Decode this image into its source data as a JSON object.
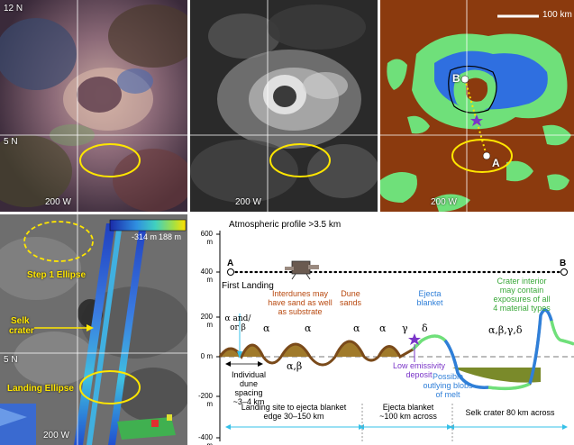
{
  "panels": {
    "top_left": {
      "lat_top": "12 N",
      "lat_mid": "5 N",
      "lon": "200 W"
    },
    "top_mid": {
      "lon": "200 W"
    },
    "top_right": {
      "scale": "100 km",
      "lon": "200 W",
      "point_b": "B",
      "point_a": "A"
    },
    "bottom_left": {
      "colorbar_low": "-314 m",
      "colorbar_high": "188 m",
      "step1": "Step 1 Ellipse",
      "selk": "Selk",
      "crater": "crater",
      "landing": "Landing Ellipse",
      "lat": "5 N",
      "lon": "200 W"
    }
  },
  "profile": {
    "title": "Atmospheric profile >3.5 km",
    "y_ticks": [
      "600 m",
      "400 m",
      "200 m",
      "0 m",
      "-200 m",
      "-400 m"
    ],
    "point_a": "A",
    "point_b": "B",
    "first_landing": "First Landing",
    "interdunes": [
      "Interdunes may",
      "have sand as well",
      "as substrate"
    ],
    "dune_sands": [
      "Dune",
      "sands"
    ],
    "ejecta": [
      "Ejecta",
      "blanket"
    ],
    "crater_interior": [
      "Crater interior",
      "may contain",
      "exposures of all",
      "4 material types"
    ],
    "alpha_beta_top": [
      "α and/",
      "or β"
    ],
    "alpha1": "α",
    "alpha2": "α",
    "alpha3": "α",
    "gamma": "γ",
    "delta": "δ",
    "all_greek": "α,β,γ,δ",
    "alpha_beta_low": "α,β",
    "dune_spacing": [
      "Individual",
      "dune spacing",
      "~3–4 km"
    ],
    "low_emissivity": [
      "Low emissivity",
      "deposit"
    ],
    "outlying": [
      "Possible",
      "outlying blobs",
      "of melt"
    ],
    "landing_site": [
      "Landing site to ejecta blanket",
      "edge 30–150 km"
    ],
    "ejecta_width": [
      "Ejecta blanket",
      "~100 km across"
    ],
    "selk_width": "Selk crater 80 km across"
  },
  "colors": {
    "brown": "#8b3a0e",
    "green": "#6fe07a",
    "blue": "#2f6fe0",
    "yellow": "#ffe600",
    "cyan": "#35c0e8",
    "orange_text": "#b8480e",
    "green_text": "#3aa83a",
    "blue_text": "#2f7fd8",
    "purple_text": "#7a35c8"
  }
}
